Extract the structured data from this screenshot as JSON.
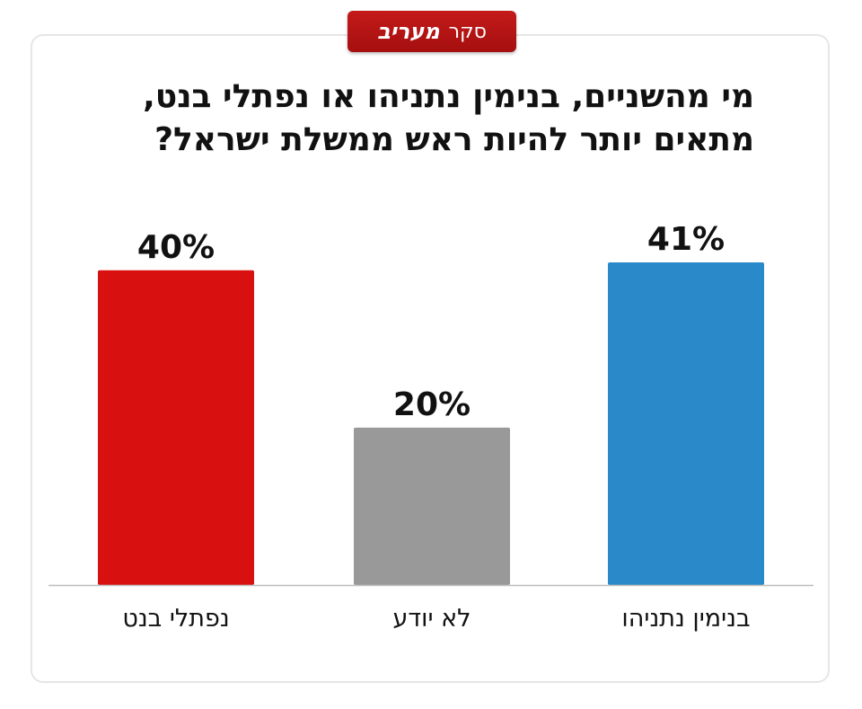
{
  "badge": {
    "label": "סקר",
    "brand": "מעריב"
  },
  "chart_data": {
    "type": "bar",
    "title_lines": [
      "מי מהשניים, בנימין נתניהו או נפתלי בנט,",
      "מתאים יותר להיות ראש ממשלת ישראל?"
    ],
    "categories": [
      "בנימין נתניהו",
      "לא יודע",
      "נפתלי בנט"
    ],
    "values": [
      41,
      20,
      40
    ],
    "value_labels": [
      "41%",
      "20%",
      "40%"
    ],
    "colors": [
      "#2a8ac9",
      "#999999",
      "#d91010"
    ],
    "category_order": "right-to-left",
    "ylim": [
      0,
      41
    ],
    "grid": false,
    "legend": "none"
  }
}
